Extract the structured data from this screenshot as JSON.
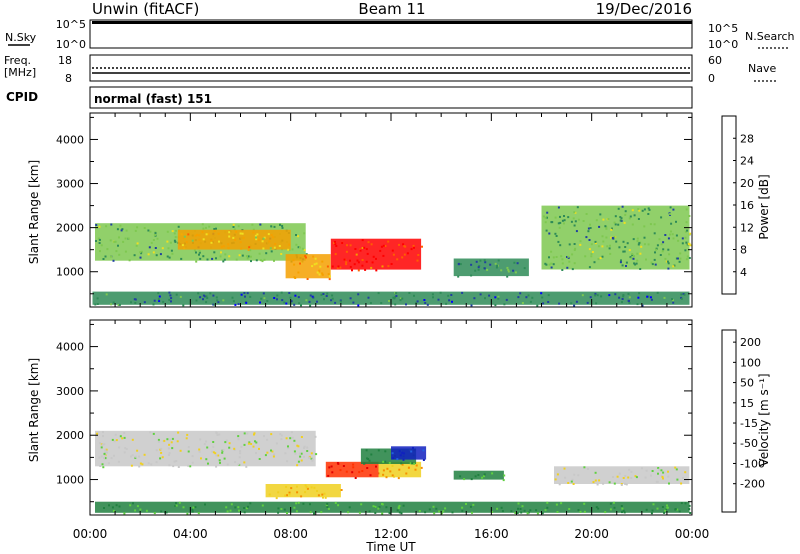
{
  "header": {
    "station": "Unwin (fitACF)",
    "beam": "Beam 11",
    "date": "19/Dec/2016"
  },
  "noise_panel": {
    "left_label": "N.Sky",
    "left_ticks": [
      "10^5",
      "10^0"
    ],
    "right_ticks": [
      "10^5",
      "10^0"
    ],
    "right_label": "N.Search"
  },
  "freq_panel": {
    "left_label_1": "Freq.",
    "left_label_2": "[MHz]",
    "left_ticks": [
      "18",
      "8"
    ],
    "right_ticks": [
      "60",
      "0"
    ],
    "right_label": "Nave"
  },
  "cpid_panel": {
    "label": "CPID",
    "mode": "normal (fast) 151"
  },
  "x_axis": {
    "title": "Time UT",
    "ticks": [
      "00:00",
      "04:00",
      "08:00",
      "12:00",
      "16:00",
      "20:00",
      "00:00"
    ]
  },
  "y_axis": {
    "title": "Slant Range [km]",
    "ticks": [
      "1000",
      "2000",
      "3000",
      "4000"
    ]
  },
  "power_scale": {
    "title": "Power [dB]",
    "ticks": [
      "4",
      "8",
      "12",
      "16",
      "20",
      "24",
      "28"
    ],
    "colors": [
      "#0000ff",
      "#2040a0",
      "#2e8b57",
      "#7ec850",
      "#f0e020",
      "#f5a000",
      "#ff6000",
      "#ff0000"
    ]
  },
  "velocity_scale": {
    "title": "Velocity [m s⁻¹]",
    "ticks": [
      "200",
      "100",
      "50",
      "15",
      "-15",
      "-50",
      "-100",
      "-200"
    ],
    "colors": [
      "#1020c0",
      "#2060e0",
      "#208040",
      "#60d040",
      "#c8c8c8",
      "#f0d020",
      "#f59000",
      "#ff3000",
      "#e00000"
    ]
  },
  "chart_data": [
    {
      "type": "heatmap",
      "title": "Power [dB]",
      "xlabel": "Time UT",
      "ylabel": "Slant Range [km]",
      "xlim": [
        0,
        24
      ],
      "ylim": [
        200,
        4600
      ],
      "clim": [
        0,
        32
      ],
      "regions": [
        {
          "t0": 0.2,
          "t1": 8.6,
          "r0": 1250,
          "r1": 2100,
          "value": 12
        },
        {
          "t0": 3.5,
          "t1": 8.0,
          "r0": 1500,
          "r1": 1950,
          "value": 20
        },
        {
          "t0": 7.8,
          "t1": 9.6,
          "r0": 850,
          "r1": 1400,
          "value": 22
        },
        {
          "t0": 9.6,
          "t1": 13.2,
          "r0": 1050,
          "r1": 1750,
          "value": 28
        },
        {
          "t0": 0.1,
          "t1": 23.9,
          "r0": 250,
          "r1": 550,
          "value": 8
        },
        {
          "t0": 18.0,
          "t1": 23.9,
          "r0": 1050,
          "r1": 2500,
          "value": 12
        },
        {
          "t0": 14.5,
          "t1": 17.5,
          "r0": 900,
          "r1": 1300,
          "value": 10
        }
      ]
    },
    {
      "type": "heatmap",
      "title": "Velocity [m s⁻¹]",
      "xlabel": "Time UT",
      "ylabel": "Slant Range [km]",
      "xlim": [
        0,
        24
      ],
      "ylim": [
        200,
        4600
      ],
      "clim": [
        -200,
        200
      ],
      "regions": [
        {
          "t0": 0.2,
          "t1": 9.0,
          "r0": 1300,
          "r1": 2100,
          "value": 0
        },
        {
          "t0": 9.4,
          "t1": 11.5,
          "r0": 1050,
          "r1": 1400,
          "value": -200
        },
        {
          "t0": 11.5,
          "t1": 13.2,
          "r0": 1050,
          "r1": 1400,
          "value": -50
        },
        {
          "t0": 10.8,
          "t1": 13.0,
          "r0": 1350,
          "r1": 1700,
          "value": 50
        },
        {
          "t0": 12.0,
          "t1": 13.4,
          "r0": 1450,
          "r1": 1750,
          "value": 200
        },
        {
          "t0": 7.0,
          "t1": 10.0,
          "r0": 600,
          "r1": 900,
          "value": -50
        },
        {
          "t0": 14.5,
          "t1": 16.5,
          "r0": 1000,
          "r1": 1200,
          "value": 50
        },
        {
          "t0": 18.5,
          "t1": 23.9,
          "r0": 900,
          "r1": 1300,
          "value": 0
        },
        {
          "t0": 0.2,
          "t1": 23.9,
          "r0": 250,
          "r1": 500,
          "value": 50
        }
      ]
    }
  ]
}
